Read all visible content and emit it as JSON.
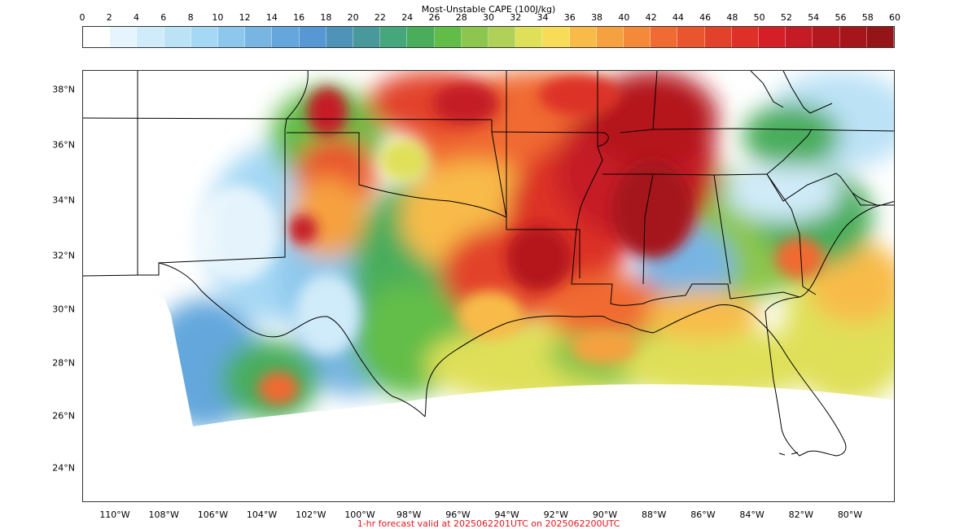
{
  "colorbar": {
    "title": "Most-Unstable CAPE (100J/kg)",
    "ticks": [
      "0",
      "2",
      "4",
      "6",
      "8",
      "10",
      "12",
      "14",
      "16",
      "18",
      "20",
      "22",
      "24",
      "26",
      "28",
      "30",
      "32",
      "34",
      "36",
      "38",
      "40",
      "42",
      "44",
      "46",
      "48",
      "50",
      "52",
      "54",
      "56",
      "58",
      "60"
    ],
    "colors": [
      "#ffffff",
      "#e6f5fd",
      "#d0ebf9",
      "#bce2f6",
      "#a5d8f4",
      "#8ec7ec",
      "#78b5e3",
      "#63a7dc",
      "#5598d4",
      "#4e93b8",
      "#48999b",
      "#47a77c",
      "#4aad5c",
      "#62bd48",
      "#8cc64e",
      "#b0d058",
      "#dfe058",
      "#f8dc57",
      "#f8bb48",
      "#f6a140",
      "#f5893a",
      "#f06b33",
      "#e9552d",
      "#e24229",
      "#dd3127",
      "#d41f27",
      "#c51b25",
      "#b4181f",
      "#a5151a",
      "#941417"
    ]
  },
  "map": {
    "lat_labels": [
      "38°N",
      "36°N",
      "34°N",
      "32°N",
      "30°N",
      "28°N",
      "26°N",
      "24°N"
    ],
    "lon_labels": [
      "110°W",
      "108°W",
      "106°W",
      "104°W",
      "102°W",
      "100°W",
      "98°W",
      "96°W",
      "94°W",
      "92°W",
      "90°W",
      "88°W",
      "86°W",
      "84°W",
      "82°W",
      "80°W"
    ]
  },
  "footer": "1-hr forecast valid at 2025062201UTC on 2025062200UTC"
}
